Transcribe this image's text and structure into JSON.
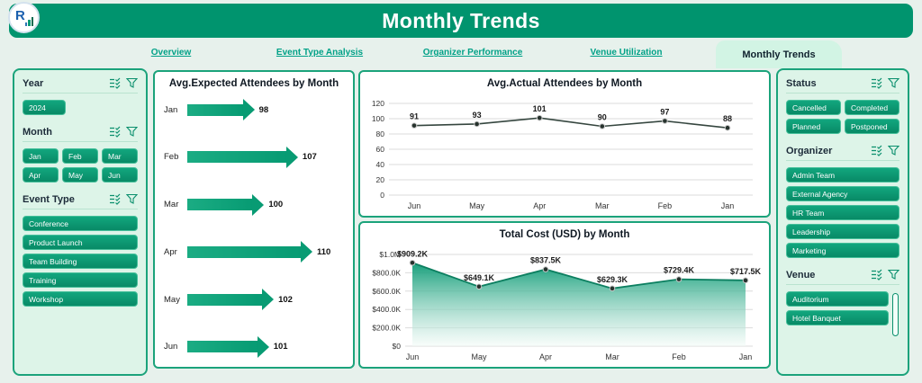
{
  "header": {
    "title": "Monthly Trends",
    "logo_text": "R"
  },
  "nav": {
    "tabs": [
      {
        "label": "Overview",
        "active": false
      },
      {
        "label": "Event Type Analysis",
        "active": false
      },
      {
        "label": "Organizer Performance",
        "active": false
      },
      {
        "label": "Venue Utilization",
        "active": false
      },
      {
        "label": "Monthly Trends",
        "active": true
      }
    ]
  },
  "filters_left": {
    "year": {
      "title": "Year",
      "options": [
        "2024"
      ]
    },
    "month": {
      "title": "Month",
      "options": [
        "Jan",
        "Feb",
        "Mar",
        "Apr",
        "May",
        "Jun"
      ]
    },
    "event_type": {
      "title": "Event Type",
      "options": [
        "Conference",
        "Product Launch",
        "Team Building",
        "Training",
        "Workshop"
      ]
    }
  },
  "filters_right": {
    "status": {
      "title": "Status",
      "options": [
        "Cancelled",
        "Completed",
        "Planned",
        "Postponed"
      ]
    },
    "organizer": {
      "title": "Organizer",
      "options": [
        "Admin Team",
        "External Agency",
        "HR Team",
        "Leadership",
        "Marketing"
      ]
    },
    "venue": {
      "title": "Venue",
      "options": [
        "Auditorium",
        "Hotel Banquet"
      ]
    }
  },
  "chart_data": [
    {
      "type": "bar",
      "orientation": "horizontal",
      "title": "Avg.Expected Attendees by Month",
      "categories": [
        "Jan",
        "Feb",
        "Mar",
        "Apr",
        "May",
        "Jun"
      ],
      "values": [
        98,
        107,
        100,
        110,
        102,
        101
      ],
      "xlim": [
        88,
        110
      ]
    },
    {
      "type": "line",
      "title": "Avg.Actual Attendees by Month",
      "categories": [
        "Jun",
        "May",
        "Apr",
        "Mar",
        "Feb",
        "Jan"
      ],
      "values": [
        91,
        93,
        101,
        90,
        97,
        88
      ],
      "ylim": [
        0,
        120
      ],
      "yticks": [
        0,
        20,
        40,
        60,
        80,
        100,
        120
      ],
      "grid": true,
      "legend": false
    },
    {
      "type": "area",
      "title": "Total Cost (USD) by Month",
      "categories": [
        "Jun",
        "May",
        "Apr",
        "Mar",
        "Feb",
        "Jan"
      ],
      "values": [
        909.2,
        649.1,
        837.5,
        629.3,
        729.4,
        717.5
      ],
      "value_labels": [
        "$909.2K",
        "$649.1K",
        "$837.5K",
        "$629.3K",
        "$729.4K",
        "$717.5K"
      ],
      "ylim": [
        0,
        1000
      ],
      "yticks": [
        0,
        200,
        400,
        600,
        800,
        1000
      ],
      "ytick_labels": [
        "$0",
        "$200.0K",
        "$400.0K",
        "$600.0K",
        "$800.0K",
        "$1.0M"
      ],
      "grid": true,
      "legend": false
    }
  ],
  "colors": {
    "accent": "#00946e",
    "button": "#0a9a74",
    "panel_mint": "#ddf4e8",
    "link": "#00a187"
  }
}
